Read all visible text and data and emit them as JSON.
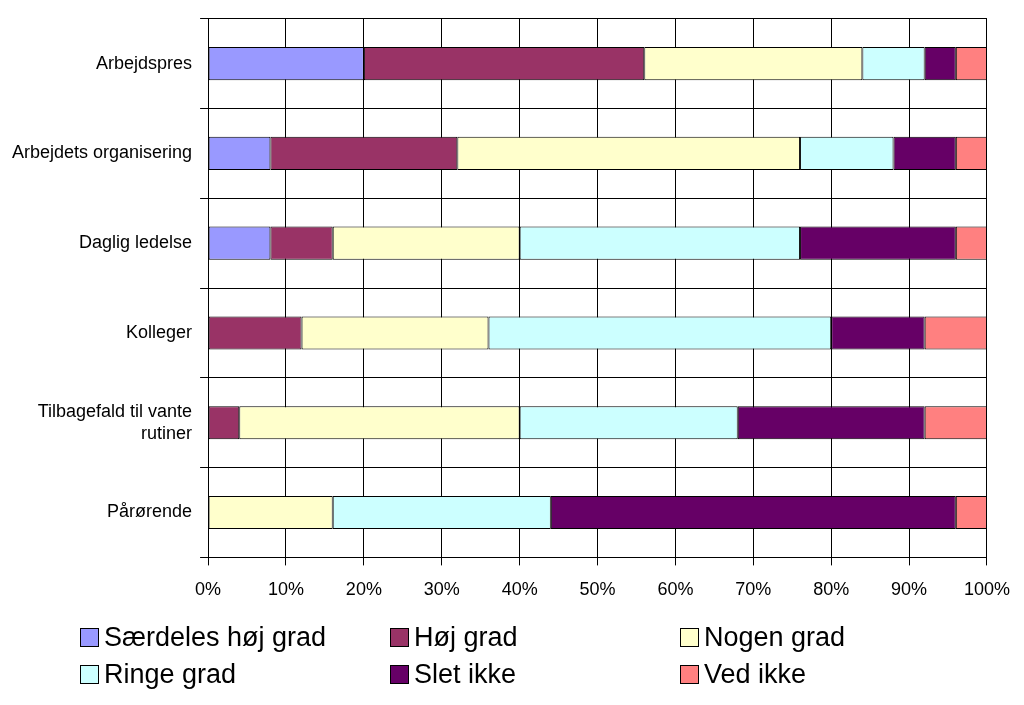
{
  "chart_data": {
    "type": "bar",
    "orientation": "horizontal",
    "stacked": true,
    "categories": [
      "Arbejdspres",
      "Arbejdets organisering",
      "Daglig ledelse",
      "Kolleger",
      "Tilbagefald til vante rutiner",
      "Pårørende"
    ],
    "series": [
      {
        "name": "Særdeles høj grad",
        "color": "#9999ff",
        "values": [
          20,
          8,
          8,
          0,
          0,
          0
        ]
      },
      {
        "name": "Høj grad",
        "color": "#993366",
        "values": [
          36,
          24,
          8,
          12,
          4,
          0
        ]
      },
      {
        "name": "Nogen grad",
        "color": "#ffffcc",
        "values": [
          28,
          44,
          24,
          24,
          36,
          16
        ]
      },
      {
        "name": "Ringe grad",
        "color": "#ccffff",
        "values": [
          8,
          12,
          36,
          44,
          28,
          28
        ]
      },
      {
        "name": "Slet ikke",
        "color": "#660066",
        "values": [
          4,
          8,
          20,
          12,
          24,
          52
        ]
      },
      {
        "name": "Ved ikke",
        "color": "#ff8080",
        "values": [
          4,
          4,
          4,
          8,
          8,
          4
        ]
      }
    ],
    "xlim": [
      0,
      100
    ],
    "xticks": [
      {
        "value": 0,
        "label": "0%"
      },
      {
        "value": 10,
        "label": "10%"
      },
      {
        "value": 20,
        "label": "20%"
      },
      {
        "value": 30,
        "label": "30%"
      },
      {
        "value": 40,
        "label": "40%"
      },
      {
        "value": 50,
        "label": "50%"
      },
      {
        "value": 60,
        "label": "60%"
      },
      {
        "value": 70,
        "label": "70%"
      },
      {
        "value": 80,
        "label": "80%"
      },
      {
        "value": 90,
        "label": "90%"
      },
      {
        "value": 100,
        "label": "100%"
      }
    ],
    "grid": true,
    "legend": "bottom"
  }
}
